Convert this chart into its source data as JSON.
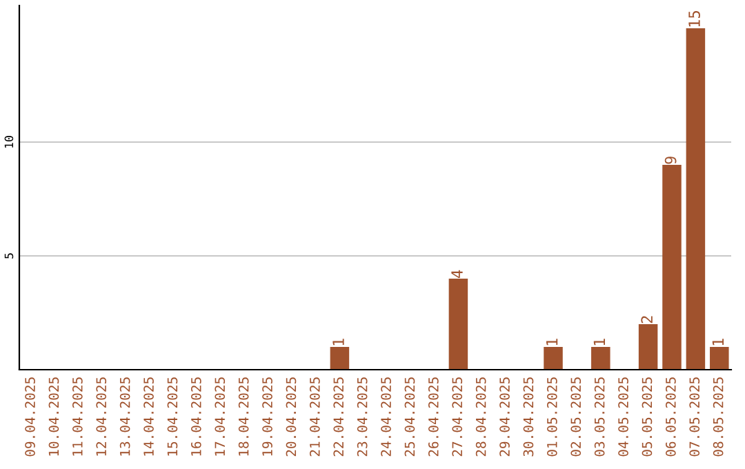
{
  "chart_data": {
    "type": "bar",
    "categories": [
      "09.04.2025",
      "10.04.2025",
      "11.04.2025",
      "12.04.2025",
      "13.04.2025",
      "14.04.2025",
      "15.04.2025",
      "16.04.2025",
      "17.04.2025",
      "18.04.2025",
      "19.04.2025",
      "20.04.2025",
      "21.04.2025",
      "22.04.2025",
      "23.04.2025",
      "24.04.2025",
      "25.04.2025",
      "26.04.2025",
      "27.04.2025",
      "28.04.2025",
      "29.04.2025",
      "30.04.2025",
      "01.05.2025",
      "02.05.2025",
      "03.05.2025",
      "04.05.2025",
      "05.05.2025",
      "06.05.2025",
      "07.05.2025",
      "08.05.2025"
    ],
    "values": [
      0,
      0,
      0,
      0,
      0,
      0,
      0,
      0,
      0,
      0,
      0,
      0,
      0,
      1,
      0,
      0,
      0,
      0,
      4,
      0,
      0,
      0,
      1,
      0,
      1,
      0,
      2,
      9,
      15,
      1
    ],
    "value_labels": [
      null,
      null,
      null,
      null,
      null,
      null,
      null,
      null,
      null,
      null,
      null,
      null,
      null,
      "1",
      null,
      null,
      null,
      null,
      "4",
      null,
      null,
      null,
      "1",
      null,
      "1",
      null,
      "2",
      "9",
      "15",
      "1"
    ],
    "color": "#a0522d",
    "ylim": [
      0,
      16
    ],
    "yticks": [
      5,
      10
    ],
    "grid": "y"
  }
}
